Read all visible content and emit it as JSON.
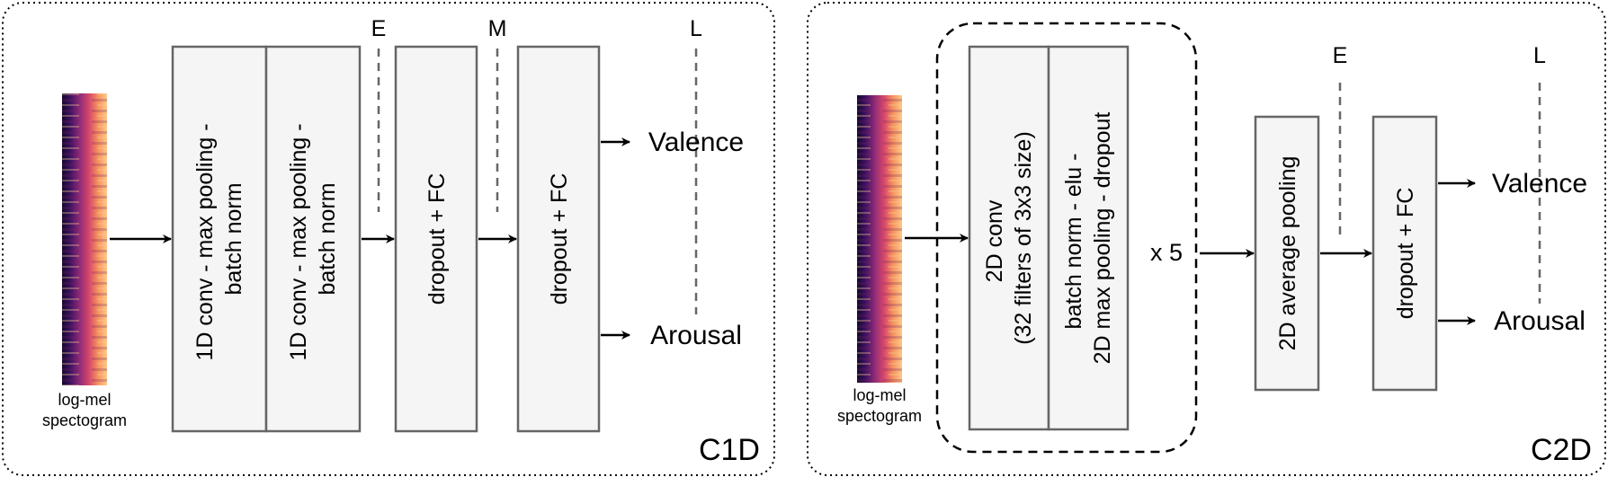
{
  "panels": {
    "c1d": {
      "label": "C1D",
      "input_caption": [
        "log-mel",
        "spectogram"
      ],
      "blocks": [
        [
          "1D conv - max pooling -",
          "batch norm"
        ],
        [
          "1D conv - max pooling -",
          "batch norm"
        ],
        [
          "dropout + FC"
        ],
        [
          "dropout + FC"
        ]
      ],
      "taps": [
        "E",
        "M",
        "L"
      ],
      "outputs": [
        "Valence",
        "Arousal"
      ]
    },
    "c2d": {
      "label": "C2D",
      "input_caption": [
        "log-mel",
        "spectogram"
      ],
      "blocks": [
        [
          "2D conv",
          "(32 filters of 3x3 size)"
        ],
        [
          "batch norm - elu -",
          "2D max pooling - dropout"
        ],
        [
          "2D average pooling"
        ],
        [
          "dropout + FC"
        ]
      ],
      "repeat": "x 5",
      "taps": [
        "E",
        "L"
      ],
      "outputs": [
        "Valence",
        "Arousal"
      ]
    }
  },
  "colors": {
    "block_fill": "#f5f5f5",
    "block_stroke": "#666666",
    "spectrogram": [
      "#1a0b3a",
      "#6a1f6e",
      "#b5357a",
      "#ee6a55",
      "#fcb97a"
    ]
  }
}
